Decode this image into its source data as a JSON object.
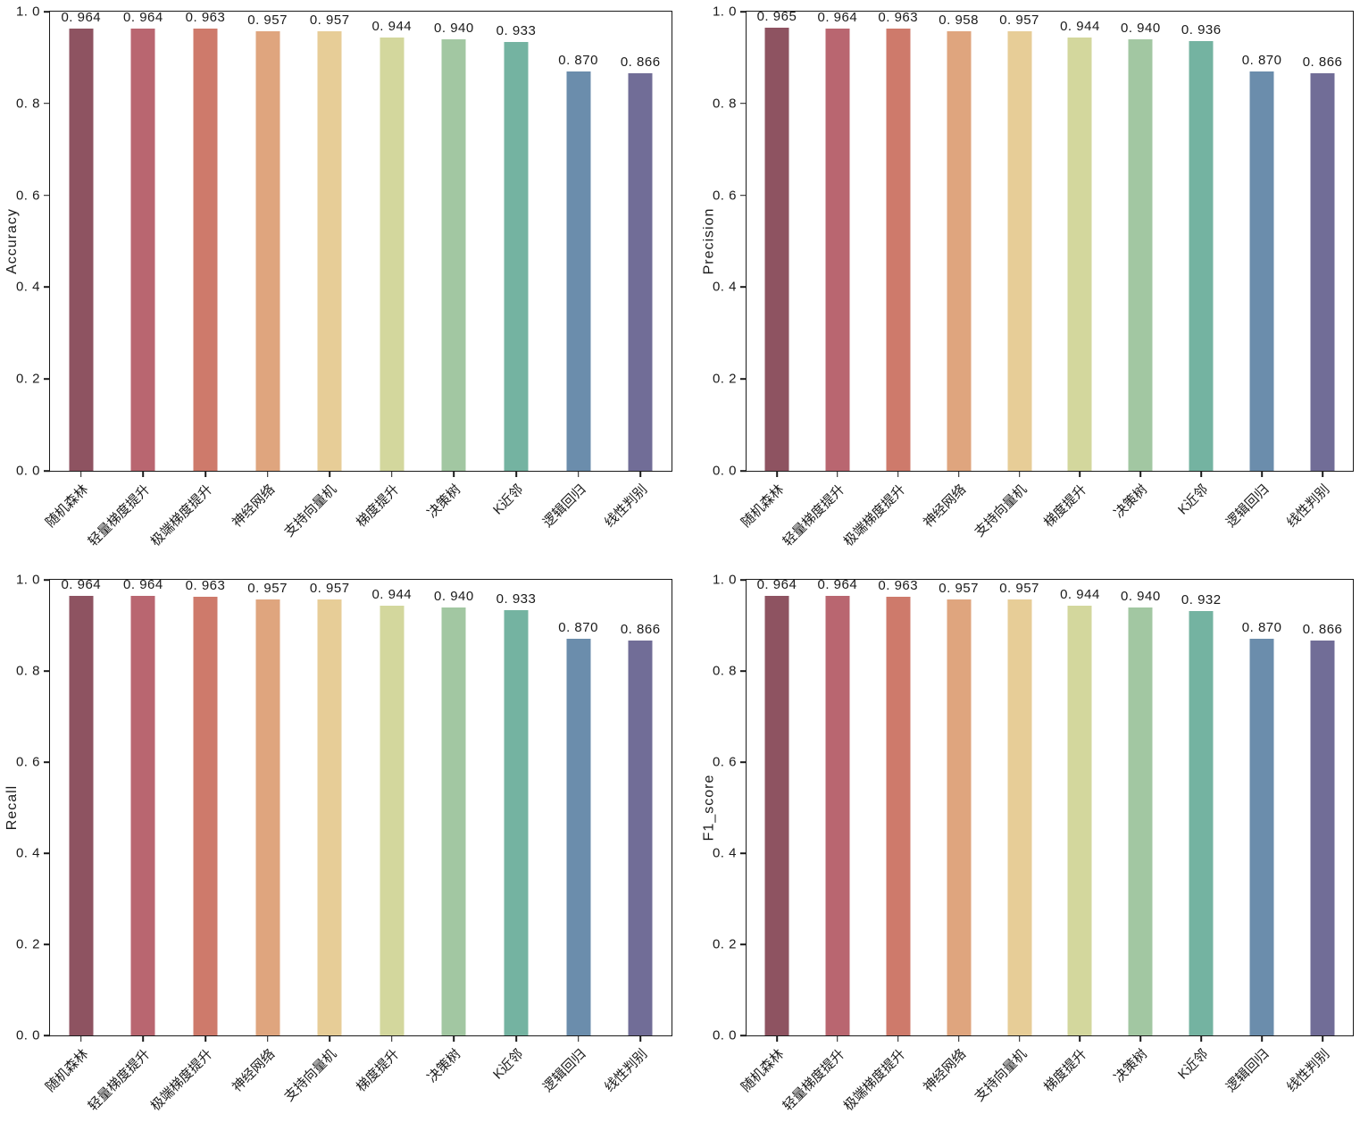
{
  "figure": {
    "background": "#ffffff",
    "axis_color": "#1a1a1a",
    "layout": "2x2-grid-of-bar-charts"
  },
  "palette": [
    "#8E5361",
    "#B96670",
    "#CE7A6B",
    "#DFA57E",
    "#E7CD97",
    "#D3D79D",
    "#A2C7A2",
    "#74B3A1",
    "#6B8DAC",
    "#716D97"
  ],
  "chart_data": [
    {
      "type": "bar",
      "ylabel": "Accuracy",
      "categories": [
        "随机森林",
        "轻量梯度提升",
        "极端梯度提升",
        "神经网络",
        "支持向量机",
        "梯度提升",
        "决策树",
        "K近邻",
        "逻辑回归",
        "线性判别"
      ],
      "values": [
        0.964,
        0.964,
        0.963,
        0.957,
        0.957,
        0.944,
        0.94,
        0.933,
        0.87,
        0.866
      ],
      "value_labels": [
        "0. 964",
        "0. 964",
        "0. 963",
        "0. 957",
        "0. 957",
        "0. 944",
        "0. 940",
        "0. 933",
        "0. 870",
        "0. 866"
      ],
      "ylim": [
        0.0,
        1.0
      ],
      "yticks": [
        0.0,
        0.2,
        0.4,
        0.6,
        0.8,
        1.0
      ],
      "ytick_labels": [
        "0. 0",
        "0. 2",
        "0. 4",
        "0. 6",
        "0. 8",
        "1. 0"
      ],
      "grid": false,
      "legend": null,
      "xlabel": ""
    },
    {
      "type": "bar",
      "ylabel": "Precision",
      "categories": [
        "随机森林",
        "轻量梯度提升",
        "极端梯度提升",
        "神经网络",
        "支持向量机",
        "梯度提升",
        "决策树",
        "K近邻",
        "逻辑回归",
        "线性判别"
      ],
      "values": [
        0.965,
        0.964,
        0.963,
        0.958,
        0.957,
        0.944,
        0.94,
        0.936,
        0.87,
        0.866
      ],
      "value_labels": [
        "0. 965",
        "0. 964",
        "0. 963",
        "0. 958",
        "0. 957",
        "0. 944",
        "0. 940",
        "0. 936",
        "0. 870",
        "0. 866"
      ],
      "ylim": [
        0.0,
        1.0
      ],
      "yticks": [
        0.0,
        0.2,
        0.4,
        0.6,
        0.8,
        1.0
      ],
      "ytick_labels": [
        "0. 0",
        "0. 2",
        "0. 4",
        "0. 6",
        "0. 8",
        "1. 0"
      ],
      "grid": false,
      "legend": null,
      "xlabel": ""
    },
    {
      "type": "bar",
      "ylabel": "Recall",
      "categories": [
        "随机森林",
        "轻量梯度提升",
        "极端梯度提升",
        "神经网络",
        "支持向量机",
        "梯度提升",
        "决策树",
        "K近邻",
        "逻辑回归",
        "线性判别"
      ],
      "values": [
        0.964,
        0.964,
        0.963,
        0.957,
        0.957,
        0.944,
        0.94,
        0.933,
        0.87,
        0.866
      ],
      "value_labels": [
        "0. 964",
        "0. 964",
        "0. 963",
        "0. 957",
        "0. 957",
        "0. 944",
        "0. 940",
        "0. 933",
        "0. 870",
        "0. 866"
      ],
      "ylim": [
        0.0,
        1.0
      ],
      "yticks": [
        0.0,
        0.2,
        0.4,
        0.6,
        0.8,
        1.0
      ],
      "ytick_labels": [
        "0. 0",
        "0. 2",
        "0. 4",
        "0. 6",
        "0. 8",
        "1. 0"
      ],
      "grid": false,
      "legend": null,
      "xlabel": ""
    },
    {
      "type": "bar",
      "ylabel": "F1_score",
      "categories": [
        "随机森林",
        "轻量梯度提升",
        "极端梯度提升",
        "神经网络",
        "支持向量机",
        "梯度提升",
        "决策树",
        "K近邻",
        "逻辑回归",
        "线性判别"
      ],
      "values": [
        0.964,
        0.964,
        0.963,
        0.957,
        0.957,
        0.944,
        0.94,
        0.932,
        0.87,
        0.866
      ],
      "value_labels": [
        "0. 964",
        "0. 964",
        "0. 963",
        "0. 957",
        "0. 957",
        "0. 944",
        "0. 940",
        "0. 932",
        "0. 870",
        "0. 866"
      ],
      "ylim": [
        0.0,
        1.0
      ],
      "yticks": [
        0.0,
        0.2,
        0.4,
        0.6,
        0.8,
        1.0
      ],
      "ytick_labels": [
        "0. 0",
        "0. 2",
        "0. 4",
        "0. 6",
        "0. 8",
        "1. 0"
      ],
      "grid": false,
      "legend": null,
      "xlabel": ""
    }
  ]
}
